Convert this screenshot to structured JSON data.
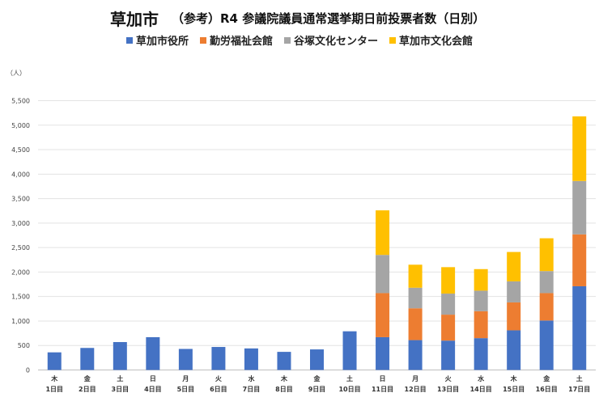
{
  "chart_data": {
    "type": "bar",
    "stacked": true,
    "title": "草加市",
    "subtitle": "（参考）R4 参議院議員通常選挙期日前投票者数（日別）",
    "ylabel": "（人）",
    "ylim": [
      0,
      5500
    ],
    "yticks": [
      0,
      500,
      1000,
      1500,
      2000,
      2500,
      3000,
      3500,
      4000,
      4500,
      5000,
      5500
    ],
    "ytick_labels": [
      "0",
      "500",
      "1,000",
      "1,500",
      "2,000",
      "2,500",
      "3,000",
      "3,500",
      "4,000",
      "4,500",
      "5,000",
      "5,500"
    ],
    "grid": true,
    "legend_position": "top",
    "weekdays": [
      "木",
      "金",
      "土",
      "日",
      "月",
      "火",
      "水",
      "木",
      "金",
      "土",
      "日",
      "月",
      "火",
      "水",
      "木",
      "金",
      "土"
    ],
    "days": [
      "1日目",
      "2日目",
      "3日目",
      "4日目",
      "5日目",
      "6日目",
      "7日目",
      "8日目",
      "9日目",
      "10日目",
      "11日目",
      "12日目",
      "13日目",
      "14日目",
      "15日目",
      "16日目",
      "17日目"
    ],
    "series": [
      {
        "name": "草加市役所",
        "color": "#4472C4",
        "values": [
          360,
          450,
          570,
          670,
          430,
          470,
          440,
          370,
          420,
          790,
          670,
          610,
          600,
          650,
          810,
          1010,
          1710
        ]
      },
      {
        "name": "勤労福祉会館",
        "color": "#ED7D31",
        "values": [
          0,
          0,
          0,
          0,
          0,
          0,
          0,
          0,
          0,
          0,
          900,
          650,
          530,
          550,
          570,
          560,
          1060
        ]
      },
      {
        "name": "谷塚文化センター",
        "color": "#A5A5A5",
        "values": [
          0,
          0,
          0,
          0,
          0,
          0,
          0,
          0,
          0,
          0,
          780,
          420,
          430,
          420,
          430,
          450,
          1090
        ]
      },
      {
        "name": "草加市文化会館",
        "color": "#FFC000",
        "values": [
          0,
          0,
          0,
          0,
          0,
          0,
          0,
          0,
          0,
          0,
          910,
          470,
          540,
          440,
          600,
          670,
          1320
        ]
      }
    ]
  }
}
